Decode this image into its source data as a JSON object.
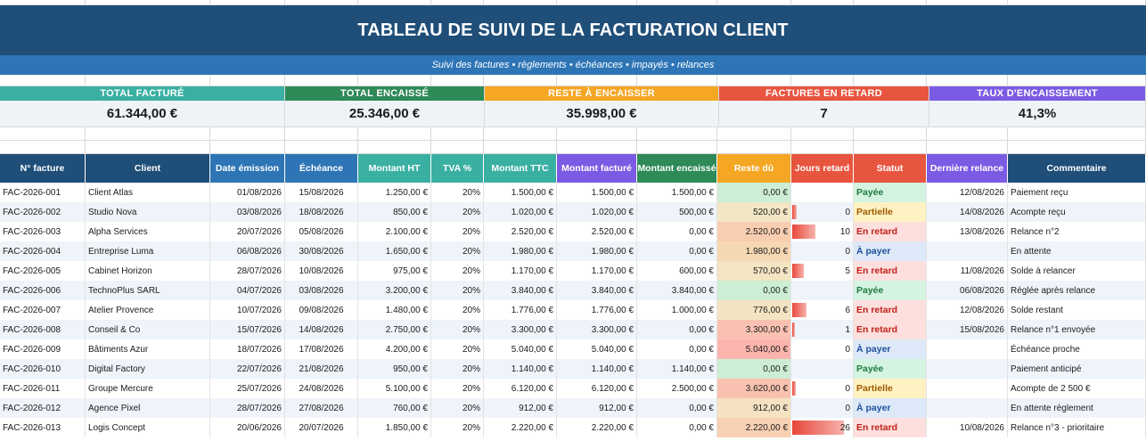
{
  "title": "TABLEAU DE SUIVI DE LA FACTURATION CLIENT",
  "subtitle": "Suivi des factures • règlements • échéances • impayés • relances",
  "kpis": [
    {
      "label": "TOTAL FACTURÉ",
      "value": "61.344,00 €",
      "color": "#3ab0a3"
    },
    {
      "label": "TOTAL ENCAISSÉ",
      "value": "25.346,00 €",
      "color": "#2e8a57"
    },
    {
      "label": "RESTE À ENCAISSER",
      "value": "35.998,00 €",
      "color": "#f5a623"
    },
    {
      "label": "FACTURES EN RETARD",
      "value": "7",
      "color": "#e8553f"
    },
    {
      "label": "TAUX D'ENCAISSEMENT",
      "value": "41,3%",
      "color": "#7b5be3"
    }
  ],
  "headers": [
    "N° facture",
    "Client",
    "Date émission",
    "Échéance",
    "Montant HT",
    "TVA %",
    "Montant TTC",
    "Montant facturé",
    "Montant encaissé",
    "Reste dû",
    "Jours retard",
    "Statut",
    "Dernière relance",
    "Commentaire"
  ],
  "header_colors": [
    "#1f4e79",
    "#1f4e79",
    "#2e75b6",
    "#2e75b6",
    "#3ab0a3",
    "#3ab0a3",
    "#3ab0a3",
    "#7b5be3",
    "#2e8a57",
    "#f5a623",
    "#e8553f",
    "#e8553f",
    "#7b5be3",
    "#1f4e79"
  ],
  "status_styles": {
    "Payée": {
      "bg": "#d4f3e1",
      "fg": "#1f7a3f"
    },
    "Partielle": {
      "bg": "#fff2c2",
      "fg": "#a05a00"
    },
    "En retard": {
      "bg": "#fde0dd",
      "fg": "#c0201a"
    },
    "À payer": {
      "bg": "#dde9f8",
      "fg": "#1d4f9b"
    }
  },
  "rows": [
    {
      "num": "FAC-2026-001",
      "client": "Client Atlas",
      "emission": "01/08/2026",
      "echeance": "15/08/2026",
      "ht": "1.250,00 €",
      "tva": "20%",
      "ttc": "1.500,00 €",
      "facture": "1.500,00 €",
      "encaisse": "1.500,00 €",
      "reste": "0,00 €",
      "reste_bg": "#cdeed5",
      "jours": "",
      "jours_pct": 0,
      "statut": "Payée",
      "relance": "12/08/2026",
      "commentaire": "Paiement reçu"
    },
    {
      "num": "FAC-2026-002",
      "client": "Studio Nova",
      "emission": "03/08/2026",
      "echeance": "18/08/2026",
      "ht": "850,00 €",
      "tva": "20%",
      "ttc": "1.020,00 €",
      "facture": "1.020,00 €",
      "encaisse": "500,00 €",
      "reste": "520,00 €",
      "reste_bg": "#f3e6c4",
      "jours": "0",
      "jours_pct": 0.08,
      "statut": "Partielle",
      "relance": "14/08/2026",
      "commentaire": "Acompte reçu"
    },
    {
      "num": "FAC-2026-003",
      "client": "Alpha Services",
      "emission": "20/07/2026",
      "echeance": "05/08/2026",
      "ht": "2.100,00 €",
      "tva": "20%",
      "ttc": "2.520,00 €",
      "facture": "2.520,00 €",
      "encaisse": "0,00 €",
      "reste": "2.520,00 €",
      "reste_bg": "#f9cdb0",
      "jours": "10",
      "jours_pct": 0.38,
      "statut": "En retard",
      "relance": "13/08/2026",
      "commentaire": "Relance n°2"
    },
    {
      "num": "FAC-2026-004",
      "client": "Entreprise Luma",
      "emission": "06/08/2026",
      "echeance": "30/08/2026",
      "ht": "1.650,00 €",
      "tva": "20%",
      "ttc": "1.980,00 €",
      "facture": "1.980,00 €",
      "encaisse": "0,00 €",
      "reste": "1.980,00 €",
      "reste_bg": "#f6d7b3",
      "jours": "0",
      "jours_pct": 0,
      "statut": "À payer",
      "relance": "",
      "commentaire": "En attente"
    },
    {
      "num": "FAC-2026-005",
      "client": "Cabinet Horizon",
      "emission": "28/07/2026",
      "echeance": "10/08/2026",
      "ht": "975,00 €",
      "tva": "20%",
      "ttc": "1.170,00 €",
      "facture": "1.170,00 €",
      "encaisse": "600,00 €",
      "reste": "570,00 €",
      "reste_bg": "#f3e4c2",
      "jours": "5",
      "jours_pct": 0.19,
      "statut": "En retard",
      "relance": "11/08/2026",
      "commentaire": "Solde à relancer"
    },
    {
      "num": "FAC-2026-006",
      "client": "TechnoPlus SARL",
      "emission": "04/07/2026",
      "echeance": "03/08/2026",
      "ht": "3.200,00 €",
      "tva": "20%",
      "ttc": "3.840,00 €",
      "facture": "3.840,00 €",
      "encaisse": "3.840,00 €",
      "reste": "0,00 €",
      "reste_bg": "#cdeed5",
      "jours": "",
      "jours_pct": 0,
      "statut": "Payée",
      "relance": "06/08/2026",
      "commentaire": "Réglée après relance"
    },
    {
      "num": "FAC-2026-007",
      "client": "Atelier Provence",
      "emission": "10/07/2026",
      "echeance": "09/08/2026",
      "ht": "1.480,00 €",
      "tva": "20%",
      "ttc": "1.776,00 €",
      "facture": "1.776,00 €",
      "encaisse": "1.000,00 €",
      "reste": "776,00 €",
      "reste_bg": "#f3e3c2",
      "jours": "6",
      "jours_pct": 0.23,
      "statut": "En retard",
      "relance": "12/08/2026",
      "commentaire": "Solde restant"
    },
    {
      "num": "FAC-2026-008",
      "client": "Conseil & Co",
      "emission": "15/07/2026",
      "echeance": "14/08/2026",
      "ht": "2.750,00 €",
      "tva": "20%",
      "ttc": "3.300,00 €",
      "facture": "3.300,00 €",
      "encaisse": "0,00 €",
      "reste": "3.300,00 €",
      "reste_bg": "#fac1b2",
      "jours": "1",
      "jours_pct": 0.05,
      "statut": "En retard",
      "relance": "15/08/2026",
      "commentaire": "Relance n°1 envoyée"
    },
    {
      "num": "FAC-2026-009",
      "client": "Bâtiments Azur",
      "emission": "18/07/2026",
      "echeance": "17/08/2026",
      "ht": "4.200,00 €",
      "tva": "20%",
      "ttc": "5.040,00 €",
      "facture": "5.040,00 €",
      "encaisse": "0,00 €",
      "reste": "5.040,00 €",
      "reste_bg": "#fbb4ae",
      "jours": "0",
      "jours_pct": 0,
      "statut": "À payer",
      "relance": "",
      "commentaire": "Échéance proche"
    },
    {
      "num": "FAC-2026-010",
      "client": "Digital Factory",
      "emission": "22/07/2026",
      "echeance": "21/08/2026",
      "ht": "950,00 €",
      "tva": "20%",
      "ttc": "1.140,00 €",
      "facture": "1.140,00 €",
      "encaisse": "1.140,00 €",
      "reste": "0,00 €",
      "reste_bg": "#cdeed5",
      "jours": "",
      "jours_pct": 0,
      "statut": "Payée",
      "relance": "",
      "commentaire": "Paiement anticipé"
    },
    {
      "num": "FAC-2026-011",
      "client": "Groupe Mercure",
      "emission": "25/07/2026",
      "echeance": "24/08/2026",
      "ht": "5.100,00 €",
      "tva": "20%",
      "ttc": "6.120,00 €",
      "facture": "6.120,00 €",
      "encaisse": "2.500,00 €",
      "reste": "3.620,00 €",
      "reste_bg": "#f9c2b0",
      "jours": "0",
      "jours_pct": 0.06,
      "statut": "Partielle",
      "relance": "",
      "commentaire": "Acompte de 2 500 €"
    },
    {
      "num": "FAC-2026-012",
      "client": "Agence Pixel",
      "emission": "28/07/2026",
      "echeance": "27/08/2026",
      "ht": "760,00 €",
      "tva": "20%",
      "ttc": "912,00 €",
      "facture": "912,00 €",
      "encaisse": "0,00 €",
      "reste": "912,00 €",
      "reste_bg": "#f4e2c2",
      "jours": "0",
      "jours_pct": 0,
      "statut": "À payer",
      "relance": "",
      "commentaire": "En attente règlement"
    },
    {
      "num": "FAC-2026-013",
      "client": "Logis Concept",
      "emission": "20/06/2026",
      "echeance": "20/07/2026",
      "ht": "1.850,00 €",
      "tva": "20%",
      "ttc": "2.220,00 €",
      "facture": "2.220,00 €",
      "encaisse": "0,00 €",
      "reste": "2.220,00 €",
      "reste_bg": "#f8d0b3",
      "jours": "26",
      "jours_pct": 0.86,
      "statut": "En retard",
      "relance": "10/08/2026",
      "commentaire": "Relance n°3 - prioritaire"
    }
  ]
}
